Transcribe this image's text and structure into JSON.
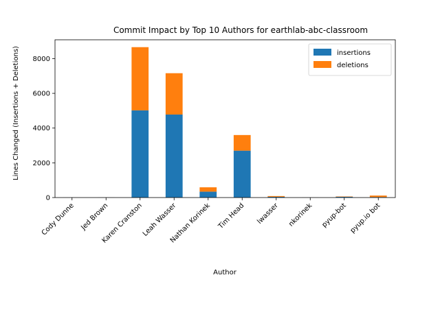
{
  "chart_data": {
    "type": "bar",
    "stacked": true,
    "title": "Commit Impact by Top 10 Authors for earthlab-abc-classroom",
    "xlabel": "Author",
    "ylabel": "Lines Changed (Insertions + Deletions)",
    "categories": [
      "Cody Dunne",
      "Jed Brown",
      "Karen Cranston",
      "Leah Wasser",
      "Nathan Korinek",
      "Tim Head",
      "lwasser",
      "nkorinek",
      "pyup-bot",
      "pyup.io bot"
    ],
    "series": [
      {
        "name": "insertions",
        "color": "#1f77b4",
        "values": [
          3,
          4,
          5020,
          4780,
          340,
          2700,
          40,
          5,
          45,
          30
        ]
      },
      {
        "name": "deletions",
        "color": "#ff7f0e",
        "values": [
          2,
          3,
          3640,
          2380,
          250,
          900,
          45,
          3,
          20,
          85
        ]
      }
    ],
    "ylim": [
      0,
      9084
    ],
    "yticks": [
      0,
      2000,
      4000,
      6000,
      8000
    ],
    "ytick_labels": [
      "0",
      "2000",
      "4000",
      "6000",
      "8000"
    ],
    "legend_position": "top-right",
    "grid": false
  }
}
